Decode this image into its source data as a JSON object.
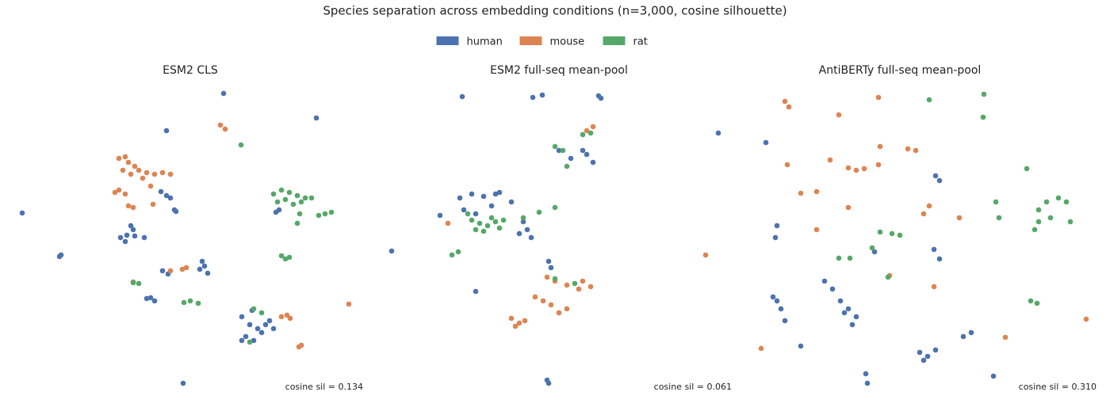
{
  "title": "Species separation across embedding conditions (n=3,000, cosine silhouette)",
  "chart_data": [
    {
      "type": "scatter",
      "title": "ESM2 CLS",
      "annotation": "cosine sil = 0.134",
      "xlim": [
        0,
        440
      ],
      "ylim": [
        0,
        390
      ],
      "grid": false,
      "series": [
        {
          "name": "human",
          "color": "#4c72b0",
          "x": [
            262,
            190,
            379,
            8,
            55,
            57,
            145,
            148,
            132,
            138,
            162,
            150,
            140,
            183,
            190,
            195,
            202,
            200,
            185,
            192,
            235,
            238,
            232,
            242,
            165,
            170,
            175,
            285,
            295,
            305,
            315,
            290,
            300,
            310,
            320,
            285,
            325,
            298,
            332,
            328,
            211
          ],
          "y": [
            377,
            330,
            346,
            226,
            171,
            173,
            210,
            205,
            195,
            190,
            195,
            197,
            198,
            253,
            248,
            245,
            228,
            230,
            153,
            149,
            165,
            159,
            155,
            150,
            118,
            119,
            115,
            95,
            85,
            80,
            85,
            70,
            65,
            75,
            90,
            65,
            80,
            103,
            230,
            227,
            11
          ]
        },
        {
          "name": "mouse",
          "color": "#dd8452",
          "x": [
            130,
            138,
            142,
            135,
            145,
            130,
            125,
            138,
            142,
            148,
            155,
            165,
            175,
            185,
            195,
            160,
            170,
            150,
            173,
            258,
            264,
            195,
            210,
            215,
            148,
            335,
            342,
            346,
            357,
            360,
            420
          ],
          "y": [
            295,
            297,
            290,
            280,
            275,
            255,
            252,
            250,
            235,
            233,
            280,
            277,
            275,
            277,
            275,
            270,
            260,
            285,
            237,
            337,
            332,
            153,
            155,
            157,
            139,
            95,
            97,
            93,
            57,
            59,
            111
          ]
        },
        {
          "name": "rat",
          "color": "#55a868",
          "x": [
            284,
            325,
            335,
            345,
            355,
            365,
            330,
            340,
            350,
            360,
            373,
            358,
            355,
            382,
            390,
            398,
            335,
            340,
            345,
            212,
            220,
            230,
            148,
            155,
            300,
            310,
            295
          ],
          "y": [
            312,
            250,
            255,
            252,
            248,
            245,
            240,
            243,
            237,
            240,
            245,
            225,
            213,
            223,
            225,
            227,
            172,
            168,
            170,
            113,
            115,
            112,
            138,
            137,
            105,
            100,
            63
          ]
        }
      ]
    },
    {
      "type": "scatter",
      "title": "ESM2 full-seq mean-pool",
      "annotation": "cosine sil = 0.061",
      "xlim": [
        0,
        440
      ],
      "ylim": [
        0,
        390
      ],
      "grid": false,
      "series": [
        {
          "name": "human",
          "color": "#4c72b0",
          "x": [
            98,
            187,
            199,
            270,
            273,
            9,
            95,
            110,
            125,
            145,
            160,
            100,
            115,
            135,
            70,
            175,
            180,
            185,
            170,
            140,
            220,
            235,
            255,
            263,
            250,
            207,
            210,
            115,
            205,
            207
          ],
          "y": [
            373,
            372,
            375,
            374,
            371,
            178,
            245,
            250,
            247,
            252,
            240,
            230,
            225,
            235,
            223,
            215,
            205,
            195,
            200,
            250,
            305,
            295,
            300,
            290,
            305,
            165,
            157,
            127,
            15,
            11
          ]
        },
        {
          "name": "mouse",
          "color": "#dd8452",
          "x": [
            80,
            205,
            215,
            230,
            245,
            260,
            250,
            190,
            200,
            210,
            220,
            230,
            160,
            170,
            165,
            177,
            255,
            263
          ],
          "y": [
            213,
            145,
            140,
            135,
            130,
            133,
            140,
            120,
            115,
            110,
            100,
            105,
            93,
            87,
            83,
            90,
            330,
            335
          ]
        },
        {
          "name": "rat",
          "color": "#55a868",
          "x": [
            110,
            120,
            130,
            140,
            150,
            115,
            125,
            135,
            105,
            145,
            175,
            195,
            215,
            85,
            93,
            215,
            225,
            250,
            260,
            230,
            215,
            240
          ],
          "y": [
            217,
            213,
            210,
            215,
            217,
            205,
            203,
            220,
            225,
            207,
            220,
            227,
            233,
            173,
            177,
            310,
            305,
            325,
            327,
            285,
            143,
            137
          ]
        }
      ]
    },
    {
      "type": "scatter",
      "title": "AntiBERTy full-seq mean-pool",
      "annotation": "cosine sil = 0.310",
      "xlim": [
        0,
        500
      ],
      "ylim": [
        0,
        390
      ],
      "grid": false,
      "series": [
        {
          "name": "human",
          "color": "#4c72b0",
          "x": [
            21,
            81,
            95,
            93,
            90,
            100,
            105,
            95,
            165,
            175,
            185,
            195,
            180,
            190,
            155,
            125,
            275,
            285,
            295,
            280,
            330,
            340,
            295,
            300,
            293,
            300,
            207,
            209,
            368,
            218
          ],
          "y": [
            327,
            315,
            210,
            195,
            120,
            105,
            90,
            115,
            130,
            115,
            105,
            95,
            100,
            85,
            140,
            58,
            50,
            45,
            53,
            40,
            70,
            75,
            273,
            267,
            180,
            168,
            23,
            11,
            20,
            177
          ]
        },
        {
          "name": "mouse",
          "color": "#dd8452",
          "x": [
            5,
            75,
            105,
            110,
            173,
            223,
            108,
            162,
            185,
            195,
            205,
            225,
            223,
            260,
            270,
            125,
            145,
            185,
            145,
            280,
            287,
            325,
            237,
            293,
            383,
            485
          ],
          "y": [
            173,
            55,
            367,
            360,
            350,
            372,
            287,
            293,
            283,
            280,
            282,
            310,
            287,
            307,
            305,
            251,
            253,
            233,
            205,
            225,
            235,
            220,
            147,
            133,
            69,
            92
          ]
        },
        {
          "name": "rat",
          "color": "#55a868",
          "x": [
            287,
            356,
            355,
            410,
            425,
            435,
            450,
            460,
            425,
            440,
            465,
            420,
            371,
            375,
            225,
            240,
            250,
            173,
            187,
            215,
            235,
            415,
            423
          ],
          "y": [
            369,
            376,
            347,
            282,
            230,
            240,
            245,
            240,
            215,
            220,
            215,
            205,
            240,
            220,
            202,
            200,
            198,
            169,
            169,
            182,
            145,
            115,
            112
          ]
        }
      ]
    }
  ]
}
